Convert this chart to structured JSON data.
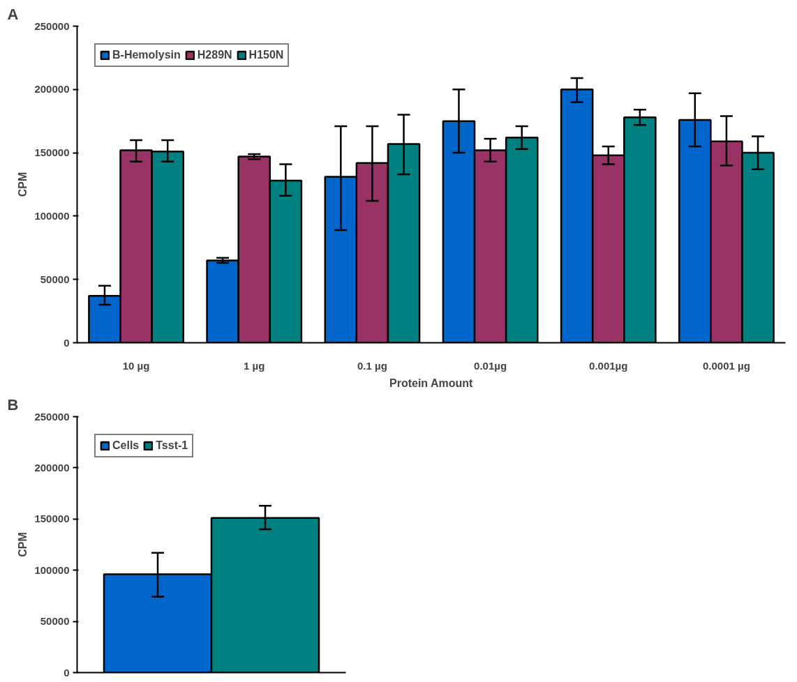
{
  "chart_data": [
    {
      "type": "bar",
      "annotations": [
        "A"
      ],
      "xlabel": "Protein Amount",
      "ylabel": "CPM",
      "categories": [
        "10 µg",
        "1 µg",
        "0.1 µg",
        "0.01µg",
        "0.001µg",
        "0.0001 µg"
      ],
      "ylim": [
        0,
        250000
      ],
      "yticks": [
        0,
        50000,
        100000,
        150000,
        200000,
        250000
      ],
      "legend": "top left",
      "grid": false,
      "series": [
        {
          "name": "B-Hemolysin",
          "color": "#0066cc",
          "values": [
            37000,
            65000,
            131000,
            175000,
            200000,
            176000
          ],
          "errors": [
            [
              30000,
              45000
            ],
            [
              63000,
              67000
            ],
            [
              89000,
              171000
            ],
            [
              150000,
              200000
            ],
            [
              190000,
              209000
            ],
            [
              155000,
              197000
            ]
          ]
        },
        {
          "name": "H289N",
          "color": "#993366",
          "values": [
            152000,
            147000,
            142000,
            152000,
            148000,
            159000
          ],
          "errors": [
            [
              143000,
              160000
            ],
            [
              145000,
              149000
            ],
            [
              112000,
              171000
            ],
            [
              143000,
              161000
            ],
            [
              141000,
              155000
            ],
            [
              140000,
              179000
            ]
          ]
        },
        {
          "name": "H150N",
          "color": "#008080",
          "values": [
            151000,
            128000,
            157000,
            162000,
            178000,
            150000
          ],
          "errors": [
            [
              143000,
              160000
            ],
            [
              116000,
              141000
            ],
            [
              133000,
              180000
            ],
            [
              153000,
              171000
            ],
            [
              172000,
              184000
            ],
            [
              137000,
              163000
            ]
          ]
        }
      ]
    },
    {
      "type": "bar",
      "annotations": [
        "B"
      ],
      "ylabel": "CPM",
      "categories": [
        null
      ],
      "ylim": [
        0,
        250000
      ],
      "yticks": [
        0,
        50000,
        100000,
        150000,
        200000,
        250000
      ],
      "legend": "top left",
      "grid": false,
      "tick_labels": "y",
      "series": [
        {
          "name": "Cells",
          "color": "#0066cc",
          "values": [
            96000
          ],
          "errors": [
            [
              74000,
              117000
            ]
          ]
        },
        {
          "name": "Tsst-1",
          "color": "#008080",
          "values": [
            151000
          ],
          "errors": [
            [
              140000,
              163000
            ]
          ]
        }
      ]
    }
  ]
}
